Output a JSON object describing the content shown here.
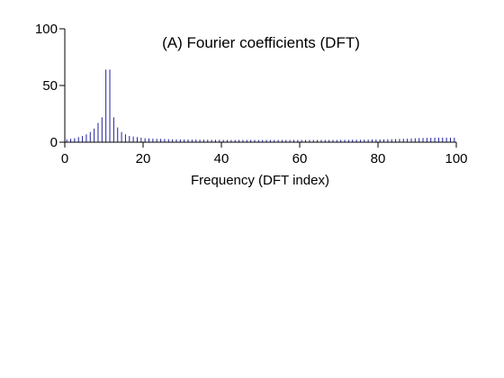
{
  "chart_data": {
    "type": "bar",
    "title": "(A) Fourier coefficients (DFT)",
    "xlabel": "Frequency (DFT index)",
    "ylabel": "",
    "xlim": [
      0,
      100
    ],
    "ylim": [
      0,
      100
    ],
    "xticks": [
      "0",
      "20",
      "40",
      "60",
      "80",
      "100"
    ],
    "yticks": [
      "0",
      "50",
      "100"
    ],
    "grid": false,
    "legend": "none",
    "bar_color": "#2020a0",
    "x": [
      0,
      1,
      2,
      3,
      4,
      5,
      6,
      7,
      8,
      9,
      10,
      11,
      12,
      13,
      14,
      15,
      16,
      17,
      18,
      19,
      20,
      21,
      22,
      23,
      24,
      25,
      26,
      27,
      28,
      29,
      30,
      31,
      32,
      33,
      34,
      35,
      36,
      37,
      38,
      39,
      40,
      41,
      42,
      43,
      44,
      45,
      46,
      47,
      48,
      49,
      50,
      51,
      52,
      53,
      54,
      55,
      56,
      57,
      58,
      59,
      60,
      61,
      62,
      63,
      64,
      65,
      66,
      67,
      68,
      69,
      70,
      71,
      72,
      73,
      74,
      75,
      76,
      77,
      78,
      79,
      80,
      81,
      82,
      83,
      84,
      85,
      86,
      87,
      88,
      89,
      90,
      91,
      92,
      93,
      94,
      95,
      96,
      97,
      98,
      99
    ],
    "values": [
      2.5,
      3,
      3.5,
      4.5,
      5.5,
      7,
      9,
      12,
      17,
      22,
      64,
      64,
      22,
      13,
      9,
      7,
      5.5,
      5,
      4.5,
      4,
      3.5,
      3.3,
      3.1,
      3,
      2.9,
      2.8,
      2.7,
      2.6,
      2.5,
      2.5,
      2.4,
      2.4,
      2.3,
      2.3,
      2.2,
      2.2,
      2.2,
      2.1,
      2.1,
      2.1,
      2,
      2,
      2,
      2,
      2,
      2,
      2,
      2,
      2,
      2,
      2,
      2,
      2,
      2,
      2,
      2,
      2,
      2,
      2,
      2,
      2,
      2,
      2,
      2,
      2,
      2,
      2,
      2,
      2,
      2,
      2.1,
      2.1,
      2.1,
      2.2,
      2.2,
      2.2,
      2.3,
      2.3,
      2.4,
      2.4,
      2.5,
      2.5,
      2.6,
      2.7,
      2.8,
      2.9,
      3,
      3.1,
      3.3,
      3.5,
      3.6,
      3.7,
      3.8,
      3.9,
      4,
      4,
      4,
      4,
      4,
      4
    ]
  }
}
